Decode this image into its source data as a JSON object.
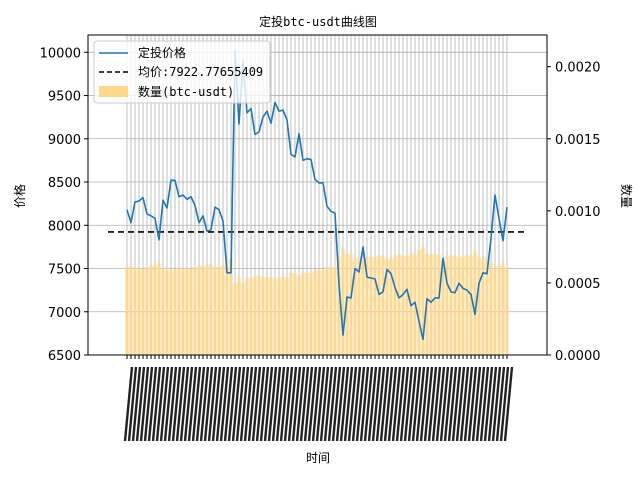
{
  "chart_data": {
    "type": "line",
    "title": "定投btc-usdt曲线图",
    "xlabel": "时间",
    "ylabel_left": "价格",
    "ylabel_right": "数量",
    "ylim_left": [
      6500,
      10200
    ],
    "ylim_right": [
      0,
      0.00222
    ],
    "yticks_left": [
      "6500",
      "7000",
      "7500",
      "8000",
      "8500",
      "9000",
      "9500",
      "10000"
    ],
    "yticks_right": [
      "0.0000",
      "0.0005",
      "0.0010",
      "0.0015",
      "0.0020"
    ],
    "grid": true,
    "legend_position": "top-left",
    "colors": {
      "line": "#1f77b4",
      "bar": "#ffd68a",
      "mean": "#000000"
    },
    "series": [
      {
        "name": "定投价格",
        "type": "line",
        "values": [
          8180,
          8030,
          8270,
          8280,
          8320,
          8130,
          8110,
          8080,
          7830,
          8290,
          8200,
          8520,
          8520,
          8330,
          8350,
          8300,
          8330,
          8230,
          8030,
          8110,
          7930,
          7950,
          8210,
          8180,
          8050,
          7450,
          7450,
          10020,
          9170,
          9900,
          9300,
          9350,
          9050,
          9080,
          9250,
          9320,
          9180,
          9420,
          9320,
          9330,
          9220,
          8820,
          8790,
          9060,
          8750,
          8770,
          8760,
          8530,
          8490,
          8490,
          8220,
          8160,
          8140,
          7320,
          6730,
          7170,
          7160,
          7500,
          7460,
          7750,
          7400,
          7390,
          7380,
          7200,
          7230,
          7490,
          7440,
          7280,
          7160,
          7200,
          7260,
          7070,
          7110,
          6890,
          6680,
          7150,
          7110,
          7160,
          7160,
          7620,
          7330,
          7230,
          7220,
          7330,
          7270,
          7250,
          7200,
          6970,
          7330,
          7450,
          7440,
          7850,
          8350,
          8080,
          7820,
          8210
        ]
      },
      {
        "name": "均价:7922.77655409",
        "type": "hline",
        "value": 7922.77655409
      },
      {
        "name": "数量(btc-usdt)",
        "type": "bar",
        "axis": "right",
        "values": [
          0.00061,
          0.00062,
          0.0006,
          0.0006,
          0.0006,
          0.00061,
          0.00062,
          0.00062,
          0.00064,
          0.0006,
          0.00061,
          0.00059,
          0.00059,
          0.0006,
          0.0006,
          0.0006,
          0.0006,
          0.00061,
          0.00062,
          0.00062,
          0.00063,
          0.00063,
          0.00061,
          0.00061,
          0.00062,
          0.00067,
          0.00067,
          0.0005,
          0.00054,
          0.0005,
          0.00054,
          0.00053,
          0.00055,
          0.00055,
          0.00054,
          0.00054,
          0.00054,
          0.00053,
          0.00054,
          0.00054,
          0.00054,
          0.00057,
          0.00057,
          0.00055,
          0.00057,
          0.00057,
          0.00057,
          0.00059,
          0.00059,
          0.00059,
          0.00061,
          0.00061,
          0.00061,
          0.00068,
          0.00074,
          0.0007,
          0.0007,
          0.00067,
          0.00067,
          0.00065,
          0.00068,
          0.00068,
          0.00068,
          0.00069,
          0.00069,
          0.00067,
          0.00067,
          0.00069,
          0.0007,
          0.00069,
          0.00069,
          0.00071,
          0.0007,
          0.00073,
          0.00075,
          0.0007,
          0.0007,
          0.0007,
          0.0007,
          0.00066,
          0.00068,
          0.00069,
          0.00069,
          0.00068,
          0.00069,
          0.00069,
          0.00069,
          0.00072,
          0.00068,
          0.00067,
          0.00067,
          0.00064,
          0.0006,
          0.00062,
          0.00064,
          0.00061
        ]
      }
    ]
  }
}
